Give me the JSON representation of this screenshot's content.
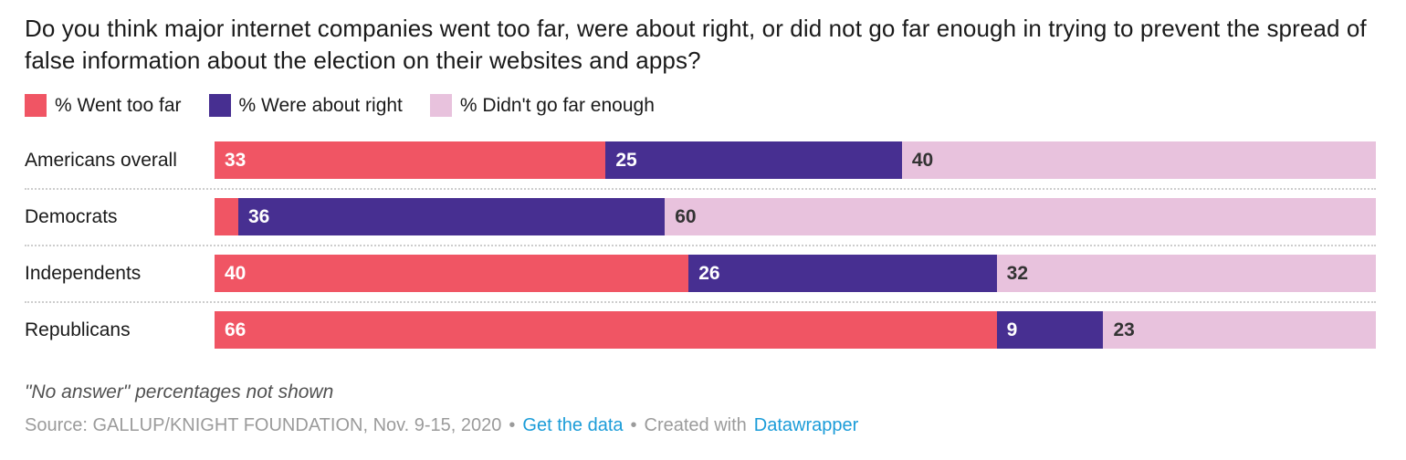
{
  "title": "Do you think major internet companies went too far, were about right, or did not go far enough in trying to prevent the spread of false information about the election on their websites and apps?",
  "colors": {
    "went_too_far": "#f05564",
    "about_right": "#472f91",
    "not_far_enough": "#e8c2dd",
    "link_blue": "#1b9cd8",
    "separator_gray": "#cdcdcd",
    "source_gray": "#9b9b9b",
    "text_dark": "#1a1a1a"
  },
  "chart_data": {
    "type": "bar",
    "stacked": true,
    "orientation": "horizontal",
    "title": "Do you think major internet companies went too far, were about right, or did not go far enough in trying to prevent the spread of false information about the election on their websites and apps?",
    "categories": [
      "Americans overall",
      "Democrats",
      "Independents",
      "Republicans"
    ],
    "series": [
      {
        "name": "% Went too far",
        "color": "#f05564",
        "label_color": "#ffffff",
        "values": [
          33,
          2,
          40,
          66
        ]
      },
      {
        "name": "% Were about right",
        "color": "#472f91",
        "label_color": "#ffffff",
        "values": [
          25,
          36,
          26,
          9
        ]
      },
      {
        "name": "% Didn't go far enough",
        "color": "#e8c2dd",
        "label_color": "#333333",
        "values": [
          40,
          60,
          32,
          23
        ]
      }
    ],
    "row_total": 98,
    "value_labels_hidden_below": 5,
    "legend_position": "top",
    "axis": "none",
    "grid": false
  },
  "footer": {
    "note": "\"No answer\" percentages not shown",
    "source": "Source: GALLUP/KNIGHT FOUNDATION, Nov. 9-15, 2020",
    "bullet": "•",
    "get_data_link": "Get the data",
    "created_with": "Created with",
    "datawrapper_link": "Datawrapper"
  }
}
